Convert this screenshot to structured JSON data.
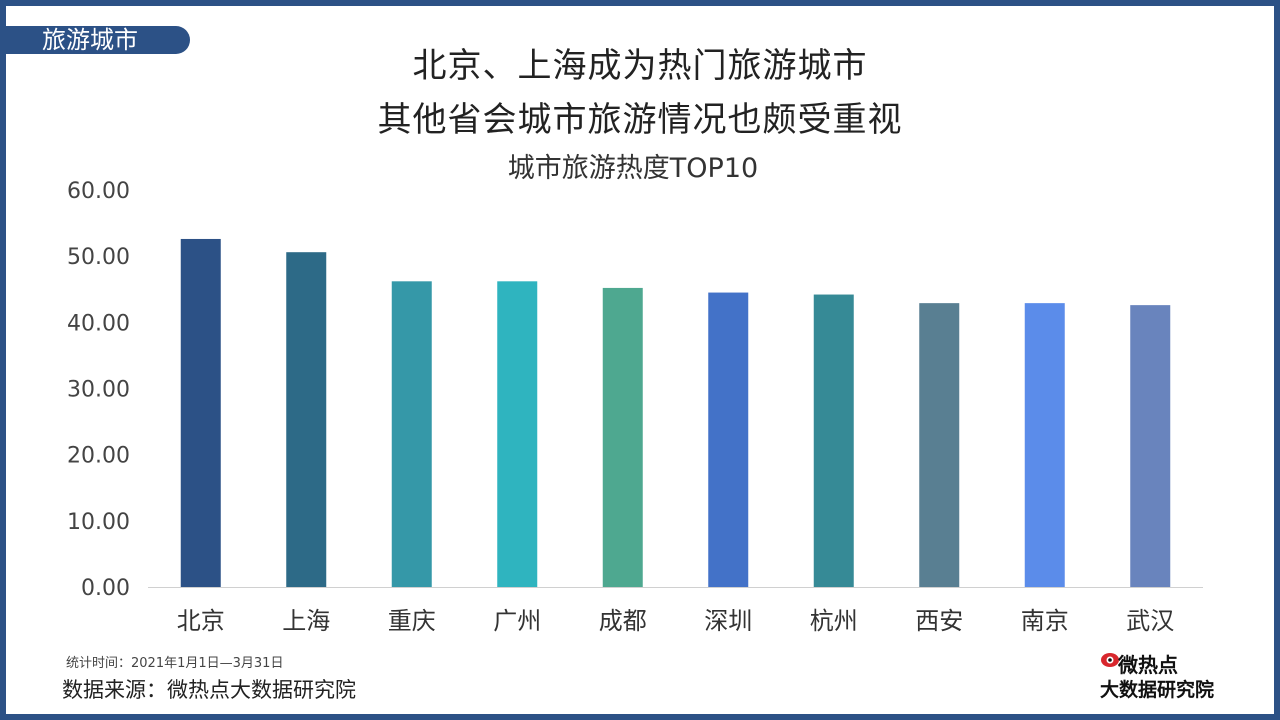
{
  "tag": "旅游城市",
  "headline": {
    "line1": "北京、上海成为热门旅游城市",
    "line2": "其他省会城市旅游情况也颇受重视"
  },
  "footer": {
    "stat_period": "统计时间：2021年1月1日—3月31日",
    "source": "数据来源：微热点大数据研究院",
    "logo_top": "微热点",
    "logo_bottom": "大数据研究院"
  },
  "chart_data": {
    "type": "bar",
    "title": "城市旅游热度TOP10",
    "categories": [
      "北京",
      "上海",
      "重庆",
      "广州",
      "成都",
      "深圳",
      "杭州",
      "西安",
      "南京",
      "武汉"
    ],
    "values": [
      52.6,
      50.6,
      46.2,
      46.2,
      45.2,
      44.5,
      44.2,
      42.9,
      42.9,
      42.6
    ],
    "colors": [
      "#2c5186",
      "#2d6a87",
      "#3598a8",
      "#2fb4bf",
      "#4ea890",
      "#4372c8",
      "#368a96",
      "#597f92",
      "#5b8cea",
      "#6984bd"
    ],
    "ylim": [
      0,
      60
    ],
    "yticks": [
      "0.00",
      "10.00",
      "20.00",
      "30.00",
      "40.00",
      "50.00",
      "60.00"
    ],
    "grid": false,
    "legend": "none",
    "xlabel": "",
    "ylabel": ""
  }
}
